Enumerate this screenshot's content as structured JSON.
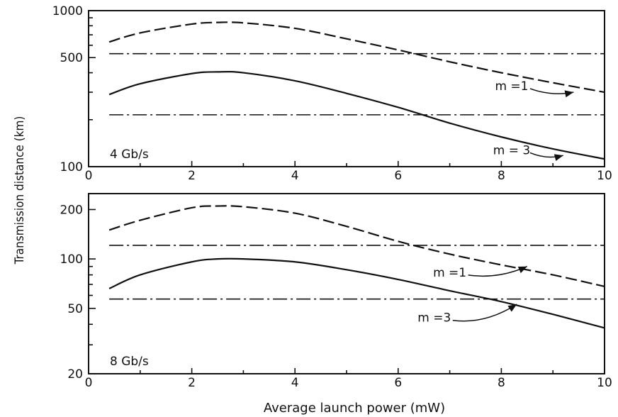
{
  "figure": {
    "ylabel": "Transmission distance (km)",
    "xlabel": "Average launch power (mW)"
  },
  "chart_data": [
    {
      "type": "line",
      "panel_label": "4 Gb/s",
      "xlim": [
        0,
        10
      ],
      "ylim": [
        100,
        1000
      ],
      "yscale": "log",
      "x_ticks": [
        0,
        2,
        4,
        6,
        8,
        10
      ],
      "y_ticks": [
        100,
        500,
        1000
      ],
      "series": [
        {
          "style": "dashed",
          "x": [
            0.4,
            1,
            2,
            2.5,
            3,
            4,
            5,
            6,
            7,
            8,
            9,
            10
          ],
          "y": [
            630,
            720,
            820,
            840,
            835,
            770,
            660,
            560,
            470,
            400,
            345,
            300
          ]
        },
        {
          "style": "solid",
          "x": [
            0.4,
            1,
            2,
            2.5,
            3,
            4,
            5,
            6,
            7,
            8,
            9,
            10
          ],
          "y": [
            290,
            340,
            395,
            405,
            400,
            355,
            295,
            240,
            190,
            155,
            130,
            112
          ]
        },
        {
          "style": "dash-dot",
          "x": [
            0.4,
            10
          ],
          "y": [
            530,
            530
          ]
        },
        {
          "style": "dash-dot",
          "x": [
            0.4,
            10
          ],
          "y": [
            215,
            215
          ]
        }
      ],
      "annotations": [
        {
          "text": "m =1",
          "at": [
            8.2,
            330
          ],
          "arrow_to": [
            9.4,
            300
          ]
        },
        {
          "text": "m = 3",
          "at": [
            8.2,
            128
          ],
          "arrow_to": [
            9.2,
            118
          ]
        }
      ]
    },
    {
      "type": "line",
      "panel_label": "8 Gb/s",
      "xlim": [
        0,
        10
      ],
      "ylim": [
        20,
        250
      ],
      "yscale": "log",
      "x_ticks": [
        0,
        2,
        4,
        6,
        8,
        10
      ],
      "y_ticks": [
        20,
        50,
        100,
        200
      ],
      "series": [
        {
          "style": "dashed",
          "x": [
            0.4,
            1,
            2,
            2.5,
            3,
            4,
            5,
            6,
            7,
            8,
            9,
            10
          ],
          "y": [
            150,
            172,
            205,
            210,
            208,
            190,
            158,
            128,
            107,
            92,
            80,
            68
          ]
        },
        {
          "style": "solid",
          "x": [
            0.4,
            1,
            2,
            2.5,
            3,
            4,
            5,
            6,
            7,
            8,
            9,
            10
          ],
          "y": [
            66,
            80,
            96,
            100,
            100,
            96,
            86,
            75,
            64,
            55,
            46,
            38
          ]
        },
        {
          "style": "dash-dot",
          "x": [
            0.4,
            10
          ],
          "y": [
            121,
            121
          ]
        },
        {
          "style": "dash-dot",
          "x": [
            0.4,
            10
          ],
          "y": [
            57,
            57
          ]
        }
      ],
      "annotations": [
        {
          "text": "m =1",
          "at": [
            7.0,
            83
          ],
          "arrow_to": [
            8.5,
            90
          ]
        },
        {
          "text": "m =3",
          "at": [
            6.7,
            44
          ],
          "arrow_to": [
            8.3,
            53
          ]
        }
      ]
    }
  ]
}
